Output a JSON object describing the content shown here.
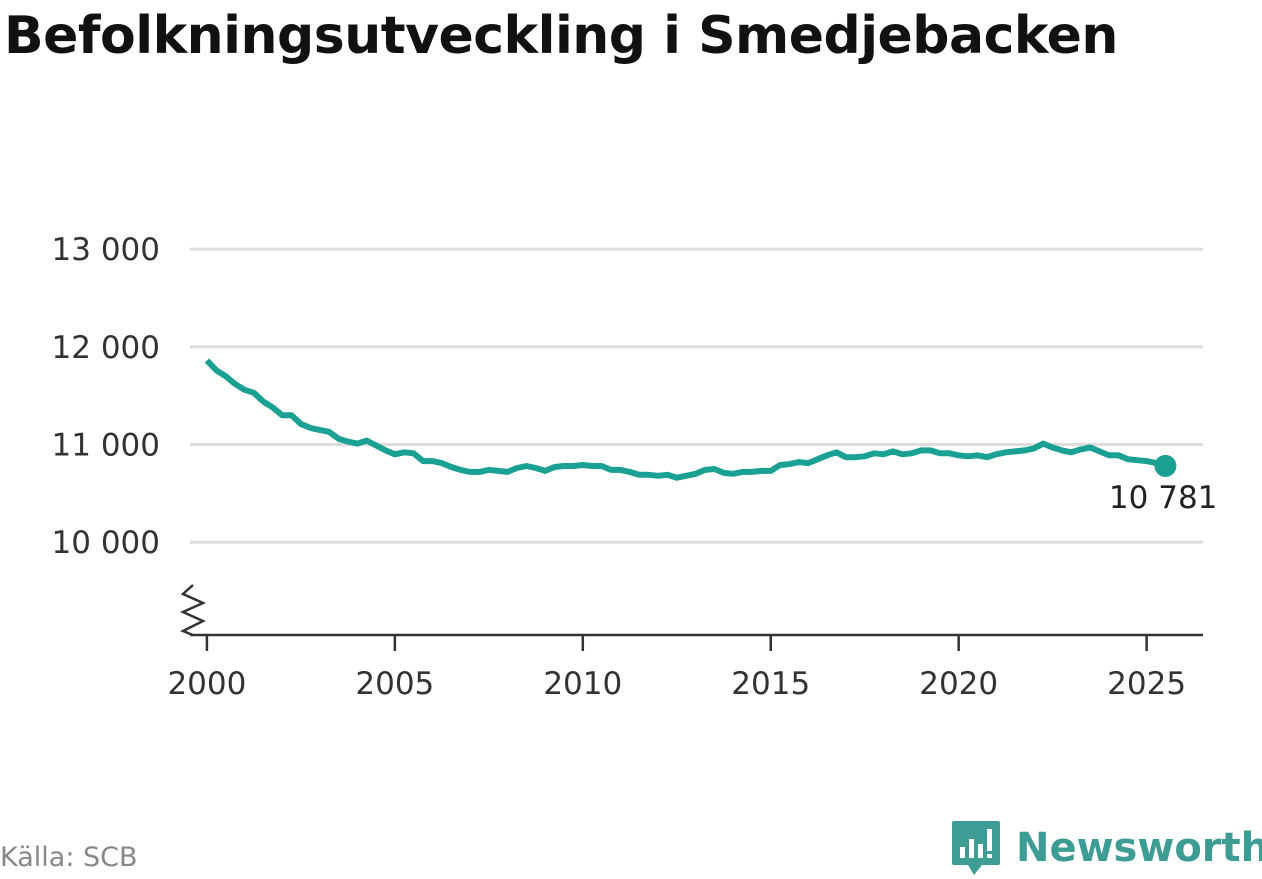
{
  "chart_data": {
    "type": "line",
    "title": "Befolkningsutveckling i Smedjebacken",
    "xlabel": "",
    "ylabel": "",
    "xlim": [
      1999.55,
      2026.5
    ],
    "ylim": [
      9050,
      13350
    ],
    "x_ticks": [
      2000,
      2005,
      2010,
      2015,
      2020,
      2025
    ],
    "y_ticks": [
      10000,
      11000,
      12000,
      13000
    ],
    "y_tick_labels": [
      "10 000",
      "11 000",
      "12 000",
      "13 000"
    ],
    "grid": true,
    "axis_break": true,
    "line_color": "#1aa193",
    "end_label": "10 781",
    "series": [
      {
        "x": [
          2000.0,
          2000.25,
          2000.5,
          2000.75,
          2001.0,
          2001.25,
          2001.5,
          2001.75,
          2002.0,
          2002.25,
          2002.5,
          2002.75,
          2003.0,
          2003.25,
          2003.5,
          2003.75,
          2004.0,
          2004.25,
          2004.5,
          2004.75,
          2005.0,
          2005.25,
          2005.5,
          2005.75,
          2006.0,
          2006.25,
          2006.5,
          2006.75,
          2007.0,
          2007.25,
          2007.5,
          2007.75,
          2008.0,
          2008.25,
          2008.5,
          2008.75,
          2009.0,
          2009.25,
          2009.5,
          2009.75,
          2010.0,
          2010.25,
          2010.5,
          2010.75,
          2011.0,
          2011.25,
          2011.5,
          2011.75,
          2012.0,
          2012.25,
          2012.5,
          2012.75,
          2013.0,
          2013.25,
          2013.5,
          2013.75,
          2014.0,
          2014.25,
          2014.5,
          2014.75,
          2015.0,
          2015.25,
          2015.5,
          2015.75,
          2016.0,
          2016.25,
          2016.5,
          2016.75,
          2017.0,
          2017.25,
          2017.5,
          2017.75,
          2018.0,
          2018.25,
          2018.5,
          2018.75,
          2019.0,
          2019.25,
          2019.5,
          2019.75,
          2020.0,
          2020.25,
          2020.5,
          2020.75,
          2021.0,
          2021.25,
          2021.5,
          2021.75,
          2022.0,
          2022.25,
          2022.5,
          2022.75,
          2023.0,
          2023.25,
          2023.5,
          2023.75,
          2024.0,
          2024.25,
          2024.5,
          2024.75,
          2025.0,
          2025.25,
          2025.5
        ],
        "values": [
          11860,
          11760,
          11700,
          11620,
          11560,
          11530,
          11440,
          11380,
          11300,
          11300,
          11210,
          11170,
          11150,
          11130,
          11060,
          11030,
          11010,
          11040,
          10990,
          10940,
          10900,
          10920,
          10910,
          10830,
          10830,
          10810,
          10770,
          10740,
          10720,
          10720,
          10740,
          10730,
          10720,
          10760,
          10780,
          10760,
          10730,
          10770,
          10780,
          10780,
          10790,
          10780,
          10780,
          10740,
          10740,
          10720,
          10690,
          10690,
          10680,
          10690,
          10660,
          10680,
          10700,
          10740,
          10750,
          10710,
          10700,
          10720,
          10720,
          10730,
          10730,
          10790,
          10800,
          10820,
          10810,
          10850,
          10890,
          10920,
          10870,
          10870,
          10880,
          10910,
          10900,
          10930,
          10900,
          10910,
          10940,
          10940,
          10910,
          10910,
          10890,
          10880,
          10890,
          10870,
          10900,
          10920,
          10930,
          10940,
          10960,
          11010,
          10970,
          10940,
          10920,
          10950,
          10970,
          10930,
          10890,
          10890,
          10850,
          10840,
          10830,
          10810,
          10781
        ]
      }
    ]
  },
  "source": "Källa: SCB",
  "brand": {
    "name": "Newsworthy",
    "color": "#3d9c93"
  }
}
